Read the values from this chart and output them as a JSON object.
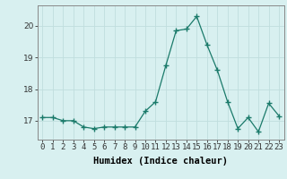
{
  "x": [
    0,
    1,
    2,
    3,
    4,
    5,
    6,
    7,
    8,
    9,
    10,
    11,
    12,
    13,
    14,
    15,
    16,
    17,
    18,
    19,
    20,
    21,
    22,
    23
  ],
  "y": [
    17.1,
    17.1,
    17.0,
    17.0,
    16.8,
    16.75,
    16.8,
    16.8,
    16.8,
    16.8,
    17.3,
    17.6,
    18.75,
    19.85,
    19.9,
    20.3,
    19.4,
    18.6,
    17.6,
    16.75,
    17.1,
    16.65,
    17.55,
    17.15
  ],
  "xlabel": "Humidex (Indice chaleur)",
  "ylim": [
    16.4,
    20.65
  ],
  "xlim": [
    -0.5,
    23.5
  ],
  "bg_color": "#d8f0f0",
  "grid_color": "#c0dede",
  "line_color": "#1a7a6a",
  "marker": "+",
  "marker_size": 4,
  "tick_fontsize": 6.5,
  "label_fontsize": 7.5,
  "yticks": [
    17,
    18,
    19,
    20
  ],
  "xtick_labels": [
    "0",
    "1",
    "2",
    "3",
    "4",
    "5",
    "6",
    "7",
    "8",
    "9",
    "10",
    "11",
    "12",
    "13",
    "14",
    "15",
    "16",
    "17",
    "18",
    "19",
    "20",
    "21",
    "22",
    "23"
  ]
}
